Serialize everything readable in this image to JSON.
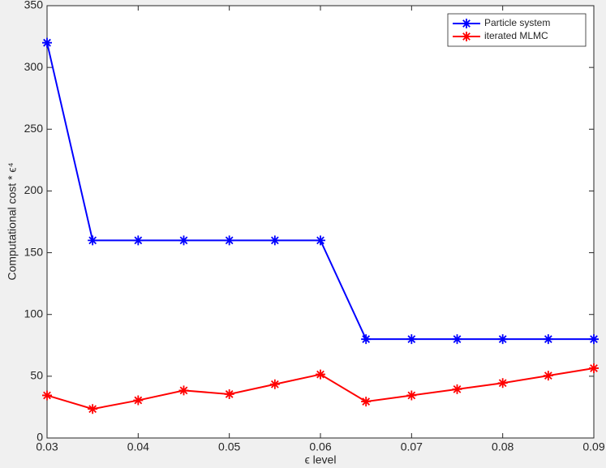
{
  "chart_data": {
    "type": "line",
    "xlabel": "ϵ level",
    "ylabel": "Computational cost * ϵ⁴",
    "x": [
      0.03,
      0.035,
      0.04,
      0.045,
      0.05,
      0.055,
      0.06,
      0.065,
      0.07,
      0.075,
      0.08,
      0.085,
      0.09
    ],
    "series": [
      {
        "name": "Particle system",
        "color": "#0000ff",
        "values": [
          320,
          160,
          160,
          160,
          160,
          160,
          160,
          80,
          80,
          80,
          80,
          80,
          80
        ]
      },
      {
        "name": "iterated MLMC",
        "color": "#ff0000",
        "values": [
          34.5,
          23.5,
          30.5,
          38.5,
          35.5,
          43.5,
          51.5,
          29.5,
          34.5,
          39.5,
          44.5,
          50.5,
          56.5
        ]
      }
    ],
    "xlim": [
      0.03,
      0.09
    ],
    "xticks": [
      0.03,
      0.04,
      0.05,
      0.06,
      0.07,
      0.08,
      0.09
    ],
    "ylim": [
      0,
      350
    ],
    "yticks": [
      0,
      50,
      100,
      150,
      200,
      250,
      300,
      350
    ],
    "marker": "*",
    "legend": "upper right",
    "grid": false
  }
}
